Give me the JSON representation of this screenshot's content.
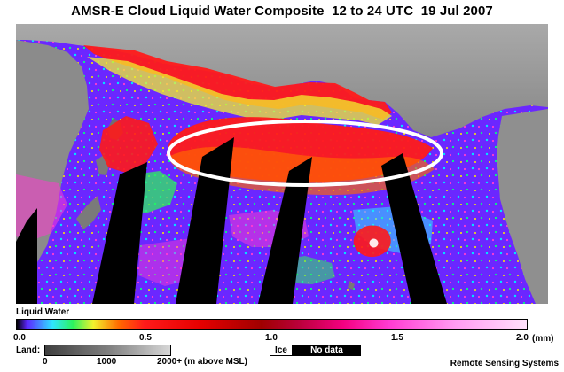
{
  "title": "AMSR-E Cloud Liquid Water Composite  12 to 24 UTC  19 Jul 2007",
  "map": {
    "region": "North Pacific Ocean",
    "land_color": "#8f8f8f",
    "ocean_palette": [
      "#5c26ff",
      "#2ee6ff",
      "#2cf25d",
      "#f2f22d",
      "#ff6a00",
      "#ff1a1a",
      "#e50000",
      "#ff3bd2",
      "#ff9cf3"
    ],
    "highlight_ellipse_color": "#ffffff",
    "no_data_color": "#000000"
  },
  "scale": {
    "title": "Liquid Water",
    "ticks": [
      "0.0",
      "0.5",
      "1.0",
      "1.5",
      "2.0"
    ],
    "unit": "(mm)"
  },
  "land_scale": {
    "label": "Land:",
    "ticks": [
      "0",
      "1000",
      "2000+ (m above MSL)"
    ]
  },
  "legend": {
    "ice": "Ice",
    "no_data": "No data"
  },
  "credit": "Remote Sensing Systems"
}
